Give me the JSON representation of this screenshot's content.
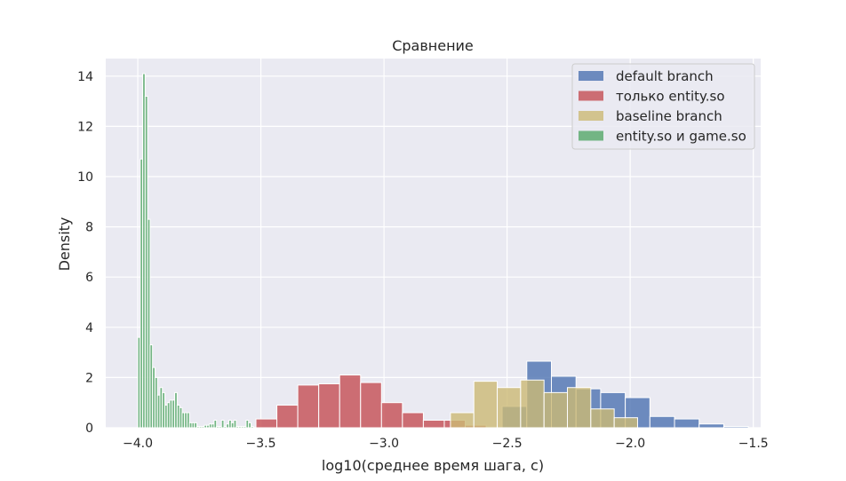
{
  "chart_data": {
    "type": "histogram",
    "title": "Сравнение",
    "xlabel": "log10(среднее время шага, с)",
    "ylabel": "Density",
    "xlim": [
      -4.13,
      -1.47
    ],
    "ylim": [
      0,
      14.7
    ],
    "xticks": [
      -4.0,
      -3.5,
      -3.0,
      -2.5,
      -2.0,
      -1.5
    ],
    "xtick_labels": [
      "−4.0",
      "−3.5",
      "−3.0",
      "−2.5",
      "−2.0",
      "−1.5"
    ],
    "yticks": [
      0,
      2,
      4,
      6,
      8,
      10,
      12,
      14
    ],
    "ytick_labels": [
      "0",
      "2",
      "4",
      "6",
      "8",
      "10",
      "12",
      "14"
    ],
    "grid": true,
    "legend_position": "top-right",
    "colors": {
      "background": "#eaeaf2",
      "default": "#4c72b0",
      "entity": "#c44e52",
      "baseline": "#ccb974",
      "entity_game": "#55a868"
    },
    "series": [
      {
        "name": "default branch",
        "color": "#4c72b0",
        "opacity": 0.8,
        "bin_start": -2.52,
        "bin_width": 0.1,
        "values": [
          0.85,
          2.65,
          2.05,
          1.55,
          1.4,
          1.2,
          0.45,
          0.35,
          0.15,
          0.05
        ]
      },
      {
        "name": "только entity.so",
        "color": "#c44e52",
        "opacity": 0.8,
        "bin_start": -3.52,
        "bin_width": 0.085,
        "values": [
          0.35,
          0.9,
          1.7,
          1.75,
          2.1,
          1.8,
          1.0,
          0.6,
          0.3,
          0.3,
          0.1
        ]
      },
      {
        "name": "baseline branch",
        "color": "#ccb974",
        "opacity": 0.8,
        "bin_start": -2.73,
        "bin_width": 0.095,
        "values": [
          0.6,
          1.85,
          1.6,
          1.9,
          1.4,
          1.6,
          0.75,
          0.4
        ]
      },
      {
        "name": "entity.so и game.so",
        "color": "#55a868",
        "opacity": 0.8,
        "bin_start": -4.0,
        "bin_width": 0.01,
        "values": [
          3.6,
          10.7,
          14.1,
          13.2,
          8.3,
          3.3,
          2.4,
          2.0,
          1.3,
          1.6,
          1.4,
          0.9,
          1.0,
          1.1,
          1.1,
          1.4,
          0.9,
          0.8,
          0.6,
          0.6,
          0.6,
          0.2,
          0.2,
          0.2,
          0.05,
          0.05,
          0.05,
          0.1,
          0.1,
          0.15,
          0.15,
          0.3,
          0.05,
          0.05,
          0.3,
          0.05,
          0.15,
          0.3,
          0.2,
          0.3,
          0.05,
          0.05,
          0.05,
          0.05,
          0.3,
          0.2,
          0.05
        ]
      }
    ]
  }
}
